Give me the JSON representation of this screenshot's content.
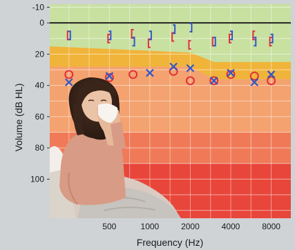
{
  "chart_data": {
    "type": "scatter",
    "xlabel": "Frequency (Hz)",
    "ylabel": "Volume  (dB HL)",
    "x_scale": "log",
    "y_inverted": true,
    "ylim": [
      -12,
      125
    ],
    "x_ticks": [
      {
        "value": 500,
        "label": "500"
      },
      {
        "value": 1000,
        "label": "1000"
      },
      {
        "value": 2000,
        "label": "2000"
      },
      {
        "value": 4000,
        "label": "4000"
      },
      {
        "value": 8000,
        "label": "8000"
      }
    ],
    "y_ticks": [
      {
        "value": -10,
        "label": "-10"
      },
      {
        "value": 0,
        "label": "0"
      },
      {
        "value": 20,
        "label": "20"
      },
      {
        "value": 40,
        "label": "40"
      },
      {
        "value": 60,
        "label": "60"
      },
      {
        "value": 80,
        "label": "80"
      },
      {
        "value": 100,
        "label": "100"
      }
    ],
    "zones": [
      {
        "name": "normal",
        "color": "#c8e0a0"
      },
      {
        "name": "mild",
        "color": "#f0b43a"
      },
      {
        "name": "moderate",
        "color": "#f4a26f"
      },
      {
        "name": "severe",
        "color": "#f07a58"
      },
      {
        "name": "profound",
        "color": "#e8463a"
      }
    ],
    "series": [
      {
        "symbol": "circle",
        "color": "#e0303a",
        "x": [
          250,
          500,
          750,
          1500,
          2000,
          3000,
          4000,
          6000,
          8000
        ],
        "y": [
          33,
          35,
          33,
          31,
          37,
          37,
          33,
          34,
          37
        ]
      },
      {
        "symbol": "cross",
        "color": "#2f56c8",
        "x": [
          250,
          500,
          1000,
          1500,
          2000,
          3000,
          4000,
          6000,
          8000
        ],
        "y": [
          38,
          34,
          32,
          28,
          29,
          37,
          32,
          38,
          33
        ]
      },
      {
        "symbol": "bracket-left",
        "color": "#e0303a",
        "x": [
          250,
          500,
          750,
          1000,
          1500,
          2000,
          3000,
          4000,
          6000,
          8000
        ],
        "y": [
          8,
          10,
          7,
          13,
          9,
          14,
          12,
          10,
          8,
          12
        ]
      },
      {
        "symbol": "bracket-right",
        "color": "#2f56c8",
        "x": [
          250,
          500,
          750,
          1000,
          1500,
          2000,
          3000,
          4000,
          6000,
          8000
        ],
        "y": [
          8,
          8,
          12,
          8,
          4,
          3,
          12,
          8,
          12,
          10
        ]
      }
    ]
  }
}
